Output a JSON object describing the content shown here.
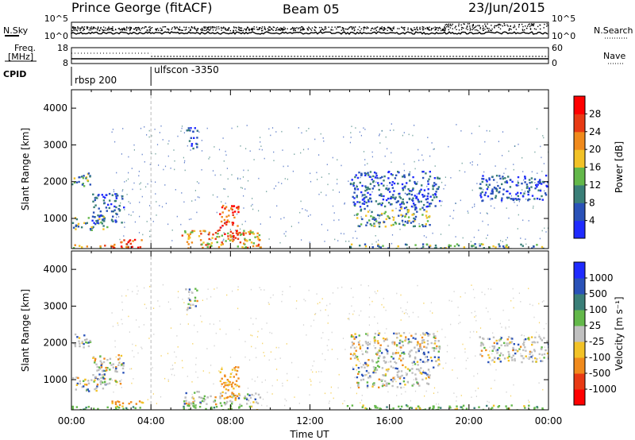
{
  "header": {
    "station": "Prince George (fitACF)",
    "beam": "Beam 05",
    "date": "23/Jun/2015"
  },
  "top_panels": {
    "nsky_label": "N.Sky",
    "nsky_left_ticks": [
      "10^5",
      "10^0"
    ],
    "nsky_right_ticks": [
      "10^5",
      "10^0"
    ],
    "nsearch_label": "N.Search",
    "freq_label": "Freq.",
    "freq_unit": "[MHz]",
    "freq_ticks": [
      "18",
      "8"
    ],
    "nave_label": "Nave",
    "nave_ticks": [
      "60",
      "0"
    ],
    "cpid_label": "CPID",
    "cpid_segments": [
      {
        "name": "rbsp 200",
        "start_hour": 0
      },
      {
        "name": "ulfscon -3350",
        "start_hour": 4
      }
    ]
  },
  "chart_data": [
    {
      "type": "heatmap",
      "name": "power",
      "ylabel": "Slant Range [km]",
      "ylim": [
        180,
        4500
      ],
      "yticks": [
        1000,
        2000,
        3000,
        4000
      ],
      "xlim": [
        0,
        24
      ],
      "colorbar": {
        "label": "Power [dB]",
        "ticks": [
          "4",
          "8",
          "12",
          "16",
          "20",
          "24",
          "28"
        ],
        "colors": [
          "#1f2bff",
          "#2a52b8",
          "#3a7f78",
          "#63b84a",
          "#f2c227",
          "#f08a1c",
          "#e83a14",
          "#ff0000"
        ]
      },
      "structures": [
        {
          "t0": 0.0,
          "t1": 2.9,
          "r0": 180,
          "r1": 300,
          "level": "high"
        },
        {
          "t0": 2.0,
          "t1": 3.6,
          "r0": 180,
          "r1": 450,
          "level": "very-high"
        },
        {
          "t0": 0.0,
          "t1": 1.8,
          "r0": 700,
          "r1": 1100,
          "level": "mid"
        },
        {
          "t0": 0.0,
          "t1": 1.0,
          "r0": 1900,
          "r1": 2300,
          "level": "mid"
        },
        {
          "t0": 1.0,
          "t1": 2.6,
          "r0": 900,
          "r1": 1700,
          "level": "low"
        },
        {
          "t0": 5.5,
          "t1": 9.5,
          "r0": 180,
          "r1": 700,
          "level": "high"
        },
        {
          "t0": 7.4,
          "t1": 8.4,
          "r0": 500,
          "r1": 1400,
          "level": "very-high"
        },
        {
          "t0": 5.7,
          "t1": 6.3,
          "r0": 2900,
          "r1": 3500,
          "level": "low"
        },
        {
          "t0": 13.8,
          "t1": 23.9,
          "r0": 180,
          "r1": 330,
          "level": "mid"
        },
        {
          "t0": 14.0,
          "t1": 18.5,
          "r0": 1300,
          "r1": 2300,
          "level": "low"
        },
        {
          "t0": 14.3,
          "t1": 18.0,
          "r0": 800,
          "r1": 1300,
          "level": "mid"
        },
        {
          "t0": 20.5,
          "t1": 24.0,
          "r0": 1500,
          "r1": 2200,
          "level": "low"
        }
      ]
    },
    {
      "type": "heatmap",
      "name": "velocity",
      "ylabel": "Slant Range [km]",
      "ylim": [
        180,
        4500
      ],
      "yticks": [
        1000,
        2000,
        3000,
        4000
      ],
      "xlim": [
        0,
        24
      ],
      "xlabel": "Time UT",
      "xticks": [
        "00:00",
        "04:00",
        "08:00",
        "12:00",
        "16:00",
        "20:00",
        "00:00"
      ],
      "colorbar": {
        "label": "Velocity [m s⁻¹]",
        "ticks": [
          "1000",
          "500",
          "100",
          "25",
          "-25",
          "-100",
          "-500",
          "-1000"
        ],
        "colors": [
          "#1f2bff",
          "#2a52b8",
          "#3a7f78",
          "#63b84a",
          "#c0c0c0",
          "#f2c227",
          "#f08a1c",
          "#e83a14",
          "#ff0000"
        ]
      }
    }
  ]
}
